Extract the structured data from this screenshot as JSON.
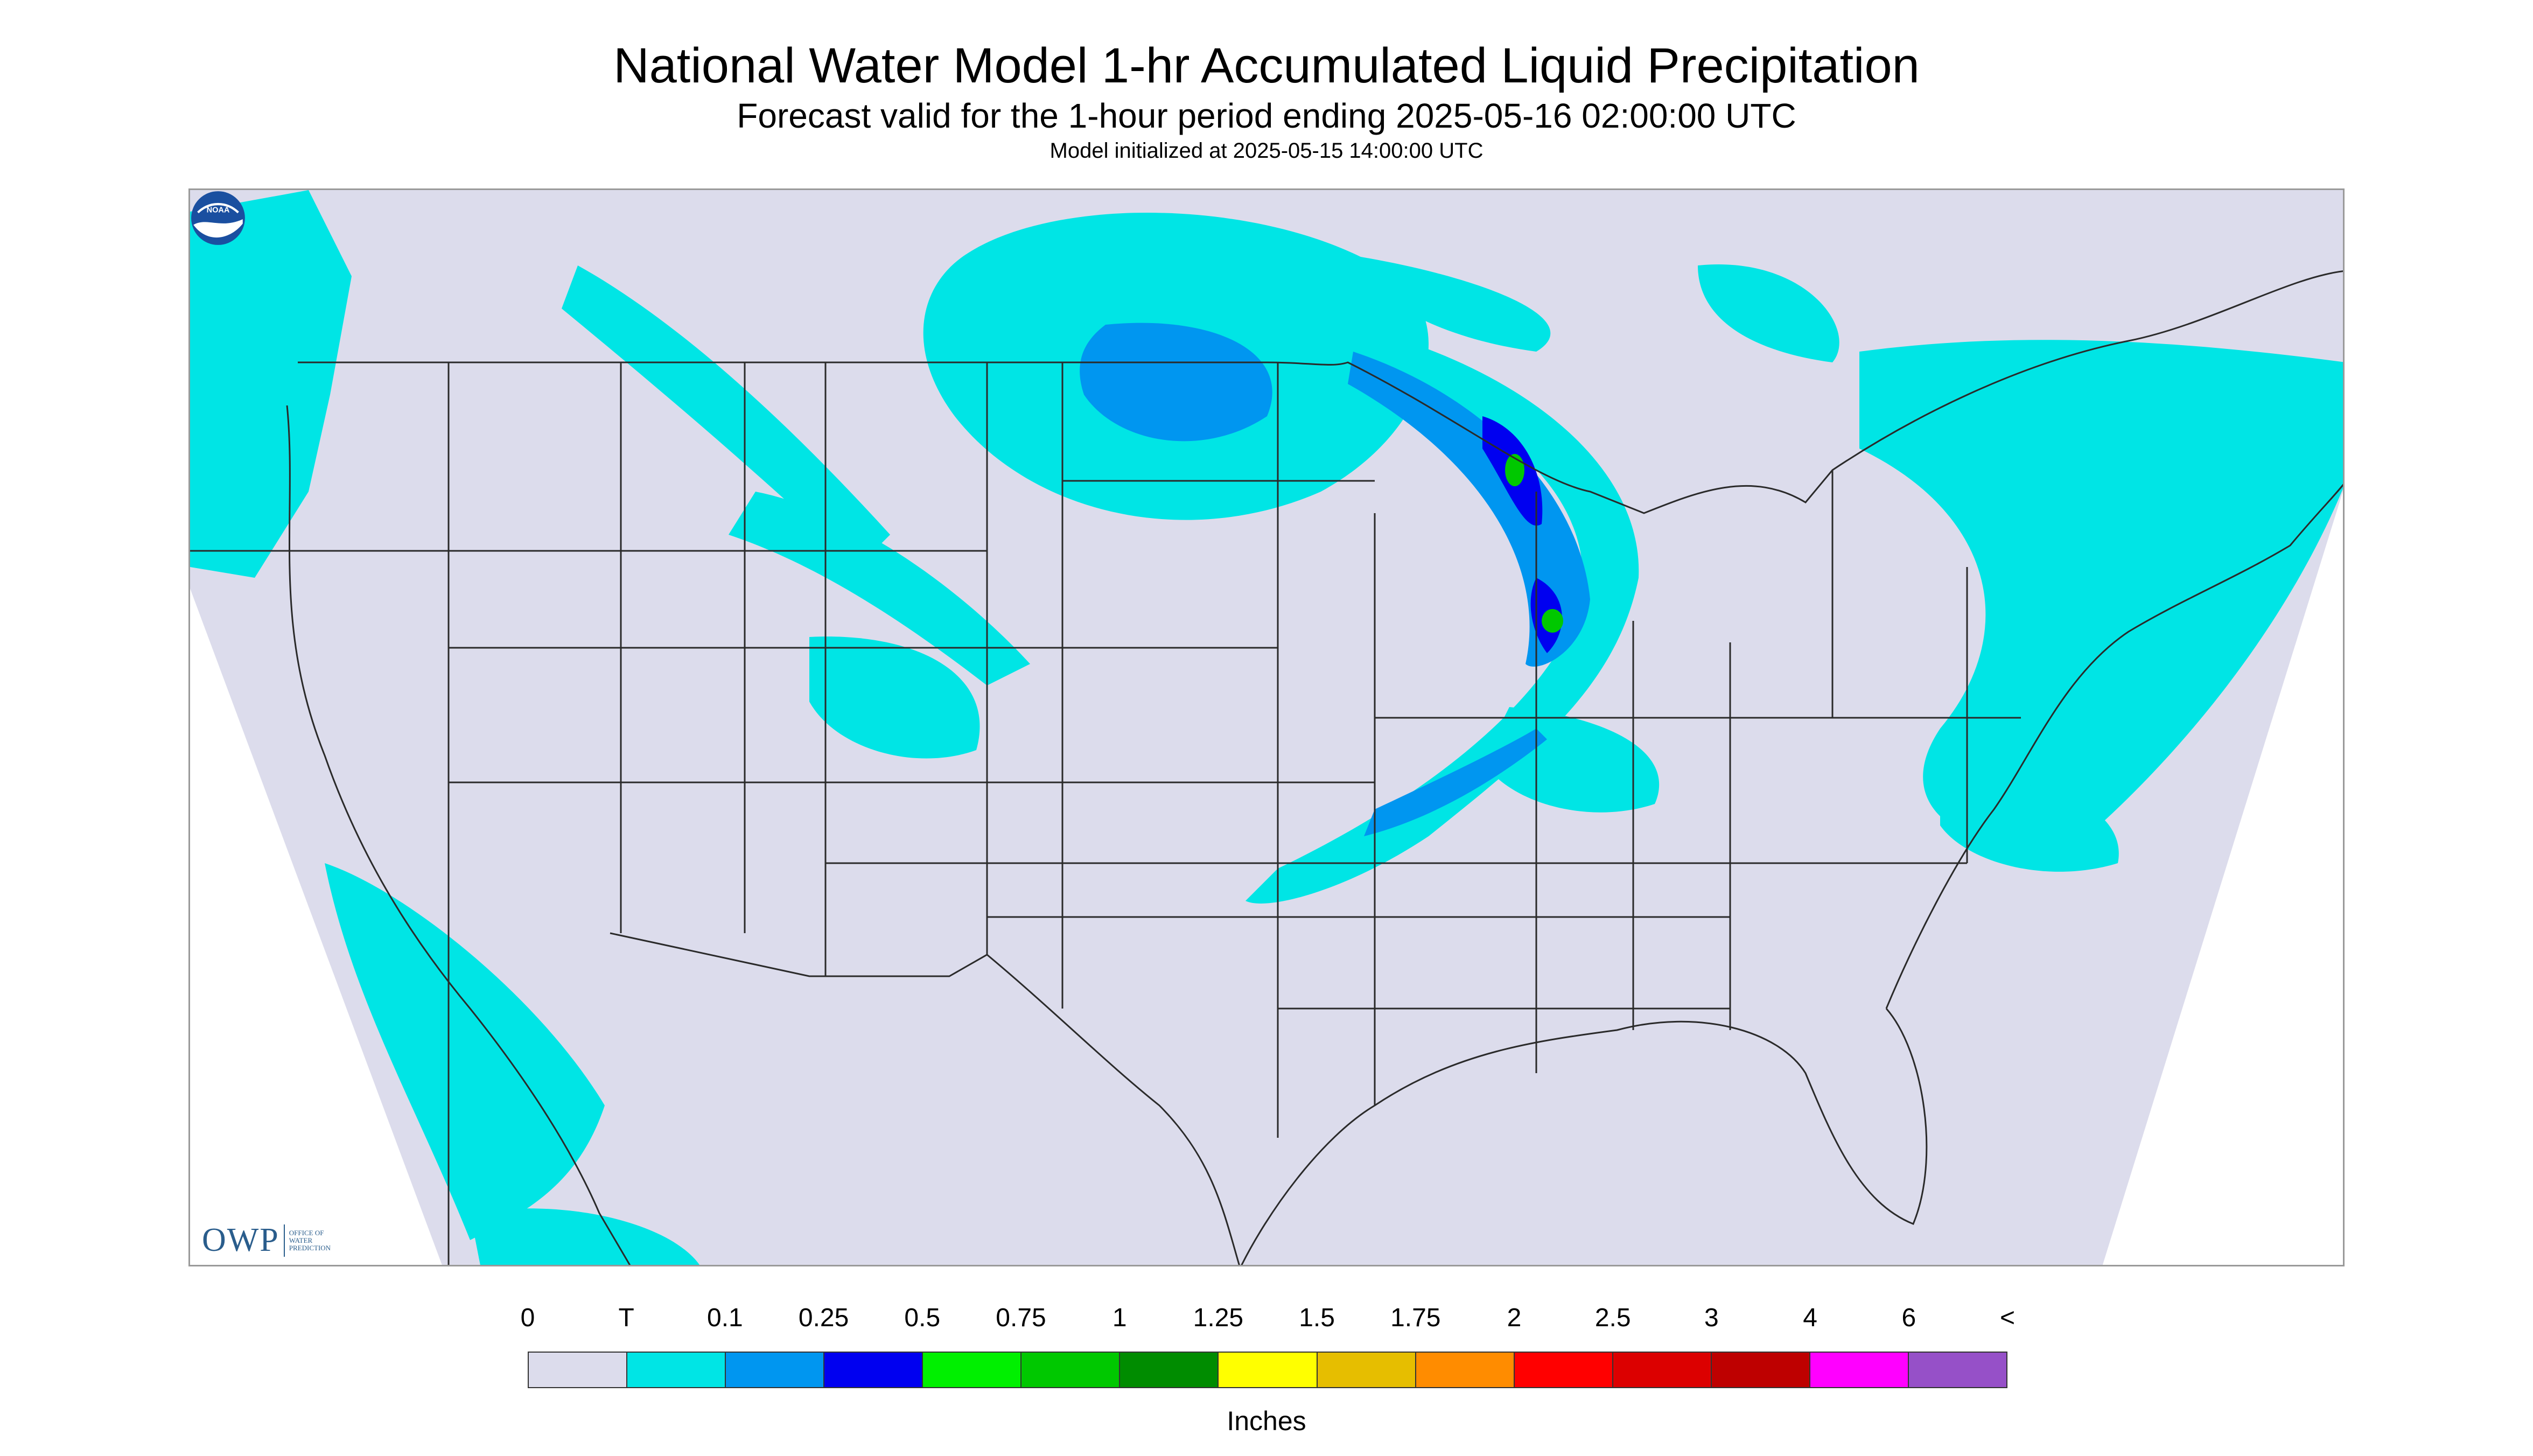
{
  "header": {
    "title": "National Water Model 1-hr Accumulated Liquid Precipitation",
    "subtitle": "Forecast valid for the 1-hour period ending 2025-05-16 02:00:00 UTC",
    "init": "Model initialized at 2025-05-15 14:00:00 UTC"
  },
  "logos": {
    "owp": "OWP",
    "owp_sub": [
      "OFFICE OF",
      "WATER",
      "PREDICTION"
    ],
    "noaa": "NOAA"
  },
  "map": {
    "region": "Contiguous United States",
    "colors": {
      "no_data": "#ffffff",
      "domain": "#dcdcec",
      "boundary": "#2a2a2a"
    }
  },
  "legend": {
    "units": "Inches",
    "tick_labels": [
      "0",
      "T",
      "0.1",
      "0.25",
      "0.5",
      "0.75",
      "1",
      "1.25",
      "1.5",
      "1.75",
      "2",
      "2.5",
      "3",
      "4",
      "6",
      "<"
    ],
    "colors": [
      "#dcdcec",
      "#00e5e5",
      "#0096f0",
      "#0000f0",
      "#00f000",
      "#00c800",
      "#008c00",
      "#ffff00",
      "#e6be00",
      "#ff8c00",
      "#ff0000",
      "#dc0000",
      "#be0000",
      "#ff00ff",
      "#9650c8"
    ]
  }
}
